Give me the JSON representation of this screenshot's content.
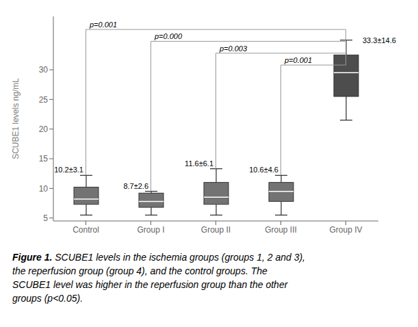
{
  "chart_data": {
    "type": "box",
    "categories": [
      "Control",
      "Group I",
      "Group II",
      "Group III",
      "Group IV"
    ],
    "q1": [
      7.3,
      6.8,
      7.3,
      7.8,
      25.5
    ],
    "median": [
      8.2,
      7.8,
      8.5,
      9.5,
      29.5
    ],
    "q3": [
      10.2,
      9.2,
      11.0,
      11.0,
      32.5
    ],
    "whisker_low": [
      5.5,
      5.5,
      5.5,
      5.5,
      21.5
    ],
    "whisker_high": [
      12.2,
      9.5,
      13.3,
      12.2,
      35.0
    ],
    "colors": [
      "#737373",
      "#737373",
      "#737373",
      "#737373",
      "#4d4d4d"
    ],
    "mean_labels": [
      "10.2±3.1",
      "8.7±2.6",
      "11.6±6.1",
      "10.6±4.6",
      "33.3±14.6"
    ],
    "significance": [
      {
        "from": "Control",
        "to": "Group IV",
        "p": "p=0.001",
        "y": 36.8
      },
      {
        "from": "Group I",
        "to": "Group IV",
        "p": "p=0.000",
        "y": 34.8
      },
      {
        "from": "Group II",
        "to": "Group IV",
        "p": "p=0.003",
        "y": 32.8
      },
      {
        "from": "Group III",
        "to": "Group IV",
        "p": "p=0.001",
        "y": 30.8
      }
    ],
    "ylabel": "SCUBE1 levels ng/mL",
    "ylim": [
      4.5,
      39
    ],
    "yticks": [
      5,
      10,
      15,
      20,
      25,
      30
    ],
    "grid": false,
    "caption_bold": "Figure 1.",
    "caption_lines": [
      " SCUBE1 levels in the ischemia groups (groups 1, 2 and 3),",
      "the reperfusion group (group 4), and the control groups. The",
      "SCUBE1 level was higher in the reperfusion group than the other",
      "groups (p<0.05)."
    ]
  }
}
